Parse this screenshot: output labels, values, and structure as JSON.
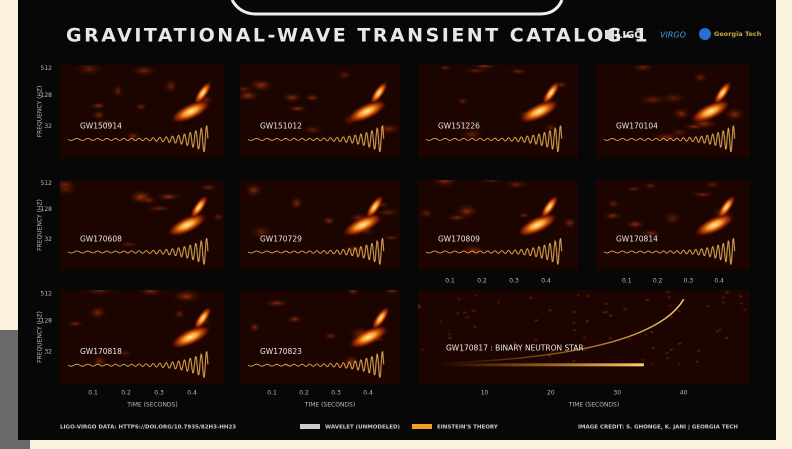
{
  "header": {
    "title": "Gravitational-Wave Transient Catalog-1",
    "logos": [
      "LIGO",
      "VIRGO",
      "Georgia Tech"
    ]
  },
  "panels": [
    {
      "label": "GW150914"
    },
    {
      "label": "GW151012"
    },
    {
      "label": "GW151226"
    },
    {
      "label": "GW170104"
    },
    {
      "label": "GW170608"
    },
    {
      "label": "GW170729"
    },
    {
      "label": "GW170809"
    },
    {
      "label": "GW170814"
    },
    {
      "label": "GW170818"
    },
    {
      "label": "GW170823"
    },
    {
      "label": "GW170817 : BINARY NEUTRON STAR"
    }
  ],
  "axes": {
    "frequency_label": "FREQUENCY (HZ)",
    "frequency_ticks": [
      "512",
      "128",
      "32"
    ],
    "time_label": "TIME (SECONDS)",
    "time_ticks": [
      "0.1",
      "0.2",
      "0.3",
      "0.4"
    ],
    "bns_time_ticks": [
      "10",
      "20",
      "30",
      "40"
    ]
  },
  "footer": {
    "data_credit": "LIGO-VIRGO DATA: HTTPS://DOI.ORG/10.7935/82H3-HH23",
    "legend": [
      "WAVELET (UNMODELED)",
      "EINSTEIN'S THEORY"
    ],
    "image_credit": "IMAGE CREDIT: S. GHONGE, K. JANI | GEORGIA TECH"
  }
}
